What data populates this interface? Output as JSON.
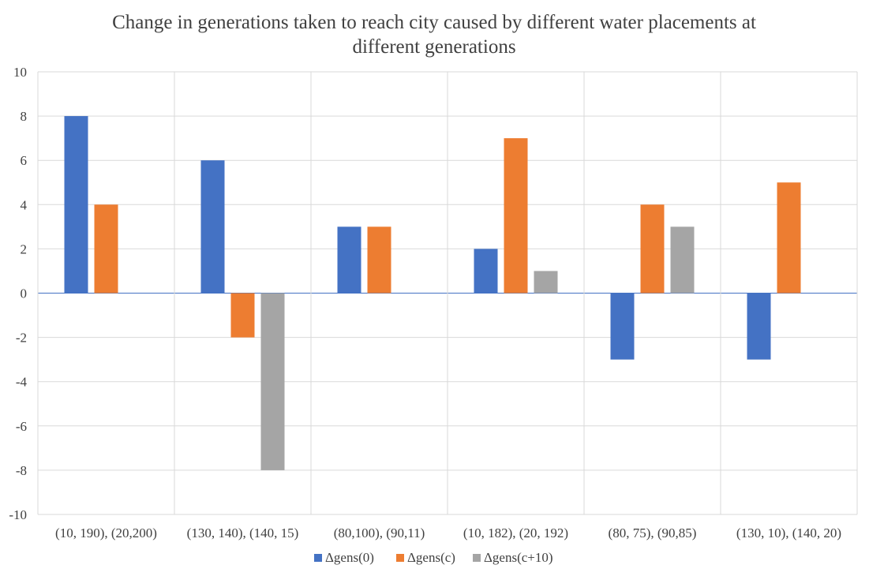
{
  "chart_data": {
    "type": "bar",
    "title_lines": [
      "Change in generations taken to reach city caused by different water placements at",
      "different generations"
    ],
    "xlabel": "",
    "ylabel": "",
    "ylim": [
      -10,
      10
    ],
    "ytick_step": 2,
    "grid": true,
    "legend_position": "bottom",
    "categories": [
      "(10, 190), (20,200)",
      "(130, 140), (140, 15)",
      "(80,100), (90,11)",
      "(10, 182), (20, 192)",
      "(80, 75), (90,85)",
      "(130, 10), (140, 20)"
    ],
    "series": [
      {
        "name": "Δgens(0)",
        "color": "#4472c4",
        "values": [
          8,
          6,
          3,
          2,
          -3,
          -3
        ]
      },
      {
        "name": "Δgens(c)",
        "color": "#ed7d31",
        "values": [
          4,
          -2,
          3,
          7,
          4,
          5
        ]
      },
      {
        "name": "Δgens(c+10)",
        "color": "#a5a5a5",
        "values": [
          0,
          -8,
          0,
          1,
          3,
          0
        ]
      }
    ]
  }
}
